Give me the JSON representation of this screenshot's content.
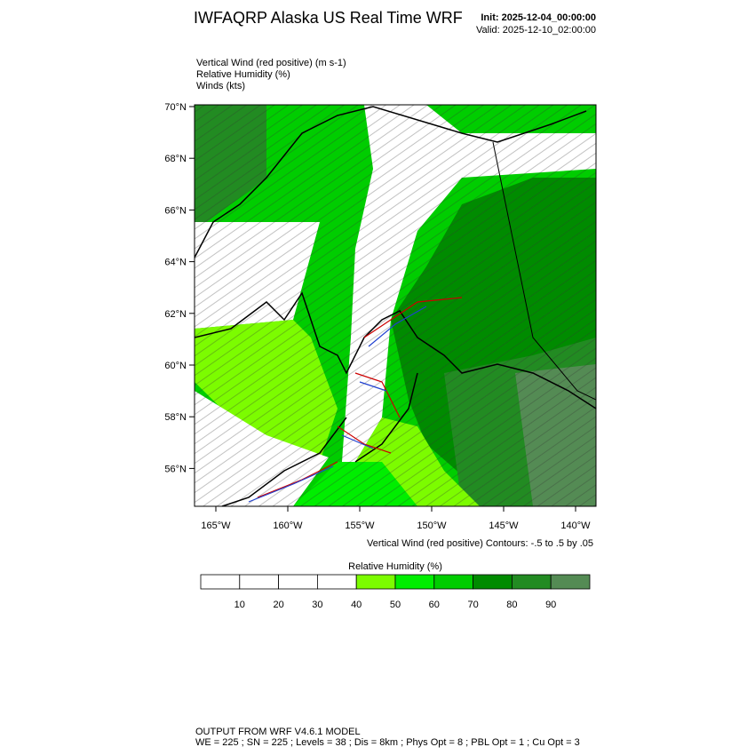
{
  "header": {
    "title": "IWFAQRP Alaska US Real Time WRF",
    "init": "Init: 2025-12-04_00:00:00",
    "valid": "Valid: 2025-12-10_02:00:00"
  },
  "fields": [
    "Vertical Wind (red positive)   (m s-1)",
    "Relative Humidity   (%)",
    "Winds   (kts)"
  ],
  "map": {
    "lat_labels": [
      "70°N",
      "68°N",
      "66°N",
      "64°N",
      "62°N",
      "60°N",
      "58°N",
      "56°N"
    ],
    "lon_labels": [
      "165°W",
      "160°W",
      "155°W",
      "150°W",
      "145°W",
      "140°W"
    ],
    "contour_note": "Vertical Wind (red positive) Contours: -.5 to .5 by .05"
  },
  "colorbar": {
    "title": "Relative Humidity  (%)",
    "ticks": [
      10,
      20,
      30,
      40,
      50,
      60,
      70,
      80,
      90
    ],
    "colors": [
      "#ffffff",
      "#ffffff",
      "#ffffff",
      "#ffffff",
      "#7cfc00",
      "#00ee00",
      "#00cd00",
      "#008b00",
      "#228b22",
      "#548b54"
    ]
  },
  "footer": {
    "line1": "OUTPUT FROM WRF V4.6.1 MODEL",
    "line2": "WE = 225 ; SN = 225 ; Levels = 38 ; Dis = 8km ; Phys Opt = 8 ; PBL Opt = 1 ; Cu Opt = 3"
  }
}
